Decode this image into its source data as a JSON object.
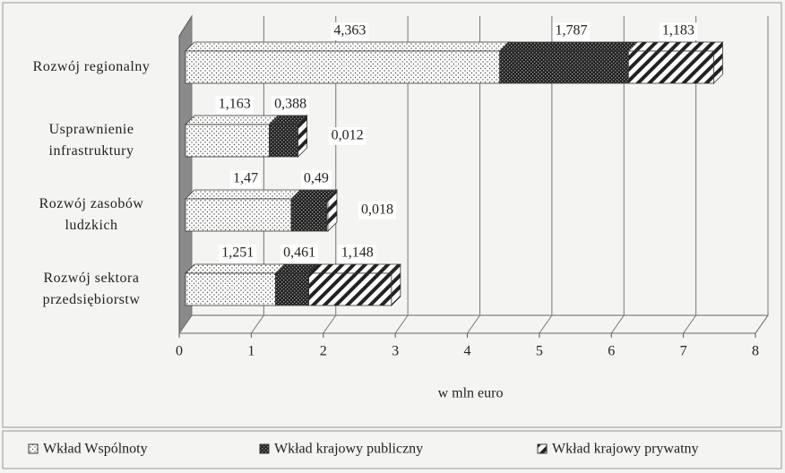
{
  "chart_data": {
    "type": "bar",
    "orientation": "horizontal",
    "stacked": true,
    "three_d": true,
    "categories": [
      "Rozwój regionalny",
      "Usprawnienie infrastruktury",
      "Rozwój zasobów ludzkich",
      "Rozwój sektora przedsiębiorstw"
    ],
    "series": [
      {
        "name": "Wkład Wspólnoty",
        "pattern": "dots",
        "values": [
          4.363,
          1.163,
          1.47,
          1.251
        ],
        "value_labels": [
          "4,363",
          "1,163",
          "1,47",
          "1,251"
        ]
      },
      {
        "name": "Wkład krajowy publiczny",
        "pattern": "crosshatch",
        "values": [
          1.787,
          0.388,
          0.49,
          0.461
        ],
        "value_labels": [
          "1,787",
          "0,388",
          "0,49",
          "0,461"
        ]
      },
      {
        "name": "Wkład krajowy prywatny",
        "pattern": "diagonal",
        "values": [
          1.183,
          0.012,
          0.018,
          1.148
        ],
        "value_labels": [
          "1,183",
          "0,012",
          "0,018",
          "1,148"
        ]
      }
    ],
    "xlabel": "w mln euro",
    "xlim": [
      0,
      8
    ],
    "xticks": [
      0,
      1,
      2,
      3,
      4,
      5,
      6,
      7,
      8
    ],
    "grid": true,
    "legend": "bottom"
  }
}
